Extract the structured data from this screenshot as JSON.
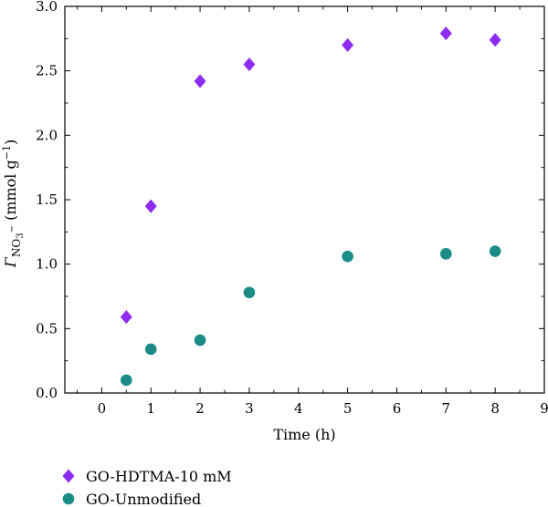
{
  "chart_data": {
    "type": "scatter",
    "xlabel": "Time (h)",
    "ylabel": {
      "symbol": "Γ",
      "subscript": "NO",
      "subscript_sub": "3",
      "subscript_sup": "−",
      "unit_open": " (mmol g",
      "unit_sup": "−1",
      "unit_close": ")"
    },
    "xlim": [
      -0.75,
      9
    ],
    "ylim": [
      0,
      3.0
    ],
    "xticks": [
      0,
      1,
      2,
      3,
      4,
      5,
      6,
      7,
      8,
      9
    ],
    "yticks": [
      "0.0",
      "0.5",
      "1.0",
      "1.5",
      "2.0",
      "2.5",
      "3.0"
    ],
    "legend_position": "bottom-left",
    "series": [
      {
        "name": "GO-HDTMA-10 mM",
        "marker": "diamond",
        "color": "#8e2bf0",
        "x": [
          0.5,
          1,
          2,
          3,
          5,
          7,
          8
        ],
        "y": [
          0.59,
          1.45,
          2.42,
          2.55,
          2.7,
          2.79,
          2.74
        ]
      },
      {
        "name": "GO-Unmodified",
        "marker": "circle",
        "color": "#1a8b87",
        "x": [
          0.5,
          1,
          2,
          3,
          5,
          7,
          8
        ],
        "y": [
          0.1,
          0.34,
          0.41,
          0.78,
          1.06,
          1.08,
          1.1
        ]
      }
    ]
  }
}
